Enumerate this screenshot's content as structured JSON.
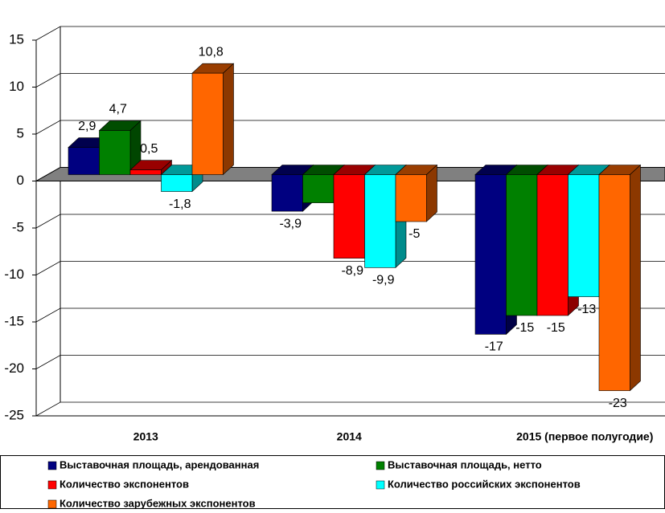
{
  "chart_data": {
    "type": "bar3d",
    "categories": [
      "2013",
      "2014",
      "2015 (первое полугодие)"
    ],
    "ylim": [
      -25,
      15
    ],
    "yticks": [
      -25,
      -20,
      -15,
      -10,
      -5,
      0,
      5,
      10,
      15
    ],
    "grid": true,
    "legend": "bottom",
    "series": [
      {
        "name": "Выставочная площадь, арендованная",
        "color": "#000080",
        "values": [
          2.9,
          -3.9,
          -17
        ],
        "value_labels": [
          "2,9",
          "-3,9",
          "-17"
        ]
      },
      {
        "name": "Выставочная площадь, нетто",
        "color": "#008000",
        "values": [
          4.7,
          -3,
          -15
        ],
        "value_labels": [
          "4,7",
          null,
          "-15"
        ]
      },
      {
        "name": "Количество экспонентов",
        "color": "#ff0000",
        "values": [
          0.5,
          -8.9,
          -15
        ],
        "value_labels": [
          "0,5",
          "-8,9",
          "-15"
        ]
      },
      {
        "name": "Количество российских экспонентов",
        "color": "#00ffff",
        "values": [
          -1.8,
          -9.9,
          -13
        ],
        "value_labels": [
          "-1,8",
          "-9,9",
          "-13"
        ]
      },
      {
        "name": "Количество зарубежных экспонентов",
        "color": "#ff6600",
        "values": [
          10.8,
          -5,
          -23
        ],
        "value_labels": [
          "10,8",
          "-5",
          "-23"
        ]
      }
    ]
  }
}
